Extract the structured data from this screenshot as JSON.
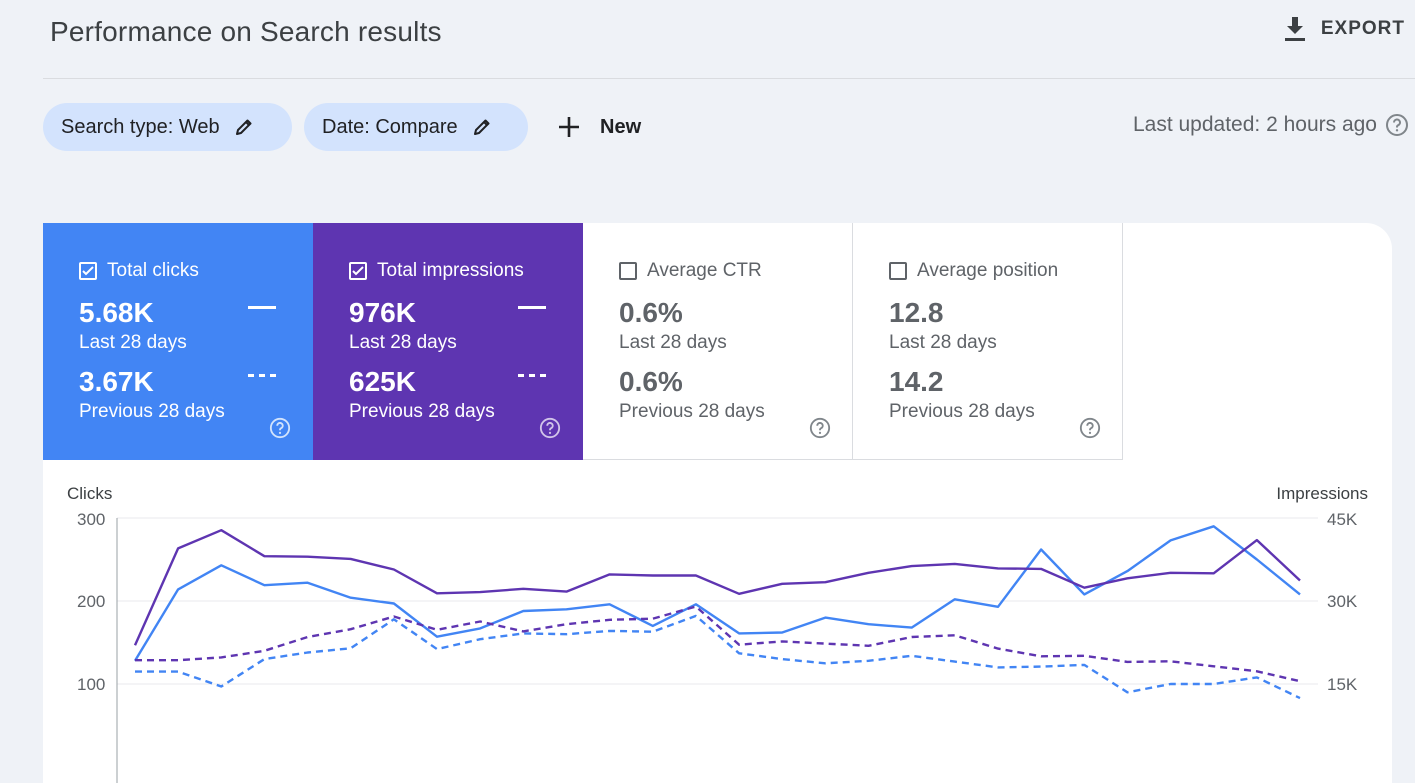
{
  "header": {
    "title": "Performance on Search results",
    "export_label": "EXPORT"
  },
  "filters": {
    "search_type": "Search type: Web",
    "date": "Date: Compare",
    "new_label": "New",
    "last_updated": "Last updated: 2 hours ago"
  },
  "metrics": [
    {
      "label": "Total clicks",
      "checked": true,
      "current": "5.68K",
      "current_period": "Last 28 days",
      "previous": "3.67K",
      "previous_period": "Previous 28 days",
      "color": "#4285f4"
    },
    {
      "label": "Total impressions",
      "checked": true,
      "current": "976K",
      "current_period": "Last 28 days",
      "previous": "625K",
      "previous_period": "Previous 28 days",
      "color": "#5e35b1"
    },
    {
      "label": "Average CTR",
      "checked": false,
      "current": "0.6%",
      "current_period": "Last 28 days",
      "previous": "0.6%",
      "previous_period": "Previous 28 days",
      "color": "#ffffff"
    },
    {
      "label": "Average position",
      "checked": false,
      "current": "12.8",
      "current_period": "Last 28 days",
      "previous": "14.2",
      "previous_period": "Previous 28 days",
      "color": "#ffffff"
    }
  ],
  "chart_data": {
    "type": "line",
    "left_axis": {
      "title": "Clicks",
      "ticks": [
        "300",
        "200",
        "100"
      ],
      "tick_values": [
        300,
        200,
        100
      ],
      "range": [
        0,
        300
      ]
    },
    "right_axis": {
      "title": "Impressions",
      "ticks": [
        "45K",
        "30K",
        "15K"
      ],
      "tick_values": [
        45000,
        30000,
        15000
      ],
      "range": [
        0,
        45000
      ]
    },
    "series": [
      {
        "metric": "clicks",
        "period": "current",
        "axis": "left",
        "style": "solid",
        "color": "#4285f4",
        "values": [
          128,
          214,
          243,
          219,
          222,
          204,
          197,
          157,
          167,
          188,
          190,
          196,
          170,
          196,
          161,
          162,
          180,
          172,
          168,
          202,
          193,
          262,
          208,
          236,
          273,
          290,
          250,
          208
        ]
      },
      {
        "metric": "clicks",
        "period": "previous",
        "axis": "left",
        "style": "dashed",
        "color": "#4285f4",
        "values": [
          115,
          115,
          97,
          130,
          138,
          143,
          178,
          142,
          154,
          161,
          160,
          164,
          163,
          182,
          137,
          130,
          125,
          128,
          134,
          127,
          120,
          121,
          123,
          90,
          100,
          100,
          108,
          83
        ]
      },
      {
        "metric": "impressions",
        "period": "current",
        "axis": "right",
        "style": "solid",
        "color": "#5e35b1",
        "values": [
          22000,
          39500,
          42800,
          38100,
          38000,
          37600,
          35700,
          31400,
          31600,
          32200,
          31700,
          34800,
          34600,
          34600,
          31300,
          33100,
          33400,
          35100,
          36300,
          36700,
          35900,
          35800,
          32400,
          34100,
          35100,
          35000,
          41000,
          33700
        ]
      },
      {
        "metric": "impressions",
        "period": "previous",
        "axis": "right",
        "style": "dashed",
        "color": "#5e35b1",
        "values": [
          19300,
          19300,
          19800,
          21000,
          23500,
          24900,
          27200,
          24800,
          26300,
          24500,
          25800,
          26600,
          26800,
          29000,
          22100,
          22700,
          22300,
          21900,
          23500,
          23800,
          21400,
          20000,
          20100,
          19000,
          19100,
          18200,
          17300,
          15500
        ]
      }
    ]
  }
}
